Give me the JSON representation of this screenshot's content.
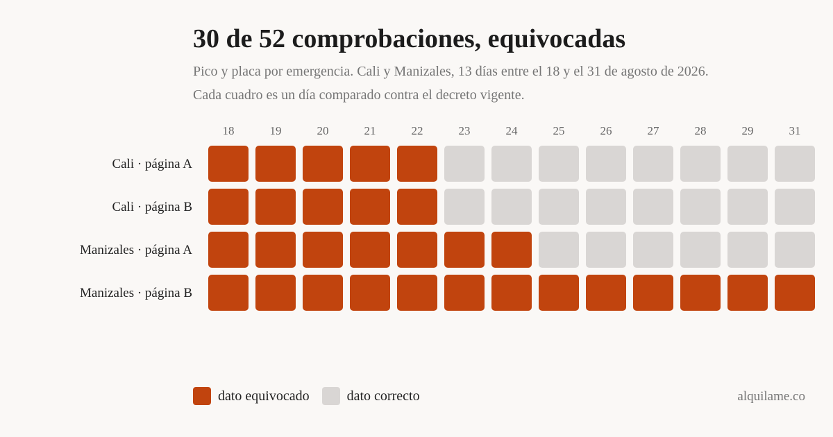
{
  "title": "30 de 52 comprobaciones, equivocadas",
  "subtitle_line1": "Pico y placa por emergencia. Cali y Manizales, 13 días entre el 18 y el 31 de agosto de 2026.",
  "subtitle_line2": "Cada cuadro es un día comparado contra el decreto vigente.",
  "source": "alquilame.co",
  "colors": {
    "wrong": "#c1440e",
    "correct": "#d9d6d4"
  },
  "legend": {
    "wrong_label": "dato equivocado",
    "correct_label": "dato correcto"
  },
  "chart_data": {
    "type": "heatmap",
    "columns": [
      "18",
      "19",
      "20",
      "21",
      "22",
      "23",
      "24",
      "25",
      "26",
      "27",
      "28",
      "29",
      "31"
    ],
    "rows": [
      {
        "label": "Cali · página A",
        "values": [
          1,
          1,
          1,
          1,
          1,
          0,
          0,
          0,
          0,
          0,
          0,
          0,
          0
        ]
      },
      {
        "label": "Cali · página B",
        "values": [
          1,
          1,
          1,
          1,
          1,
          0,
          0,
          0,
          0,
          0,
          0,
          0,
          0
        ]
      },
      {
        "label": "Manizales · página A",
        "values": [
          1,
          1,
          1,
          1,
          1,
          1,
          1,
          0,
          0,
          0,
          0,
          0,
          0
        ]
      },
      {
        "label": "Manizales · página B",
        "values": [
          1,
          1,
          1,
          1,
          1,
          1,
          1,
          1,
          1,
          1,
          1,
          1,
          1
        ]
      }
    ],
    "value_meaning": {
      "1": "dato equivocado",
      "0": "dato correcto"
    }
  }
}
